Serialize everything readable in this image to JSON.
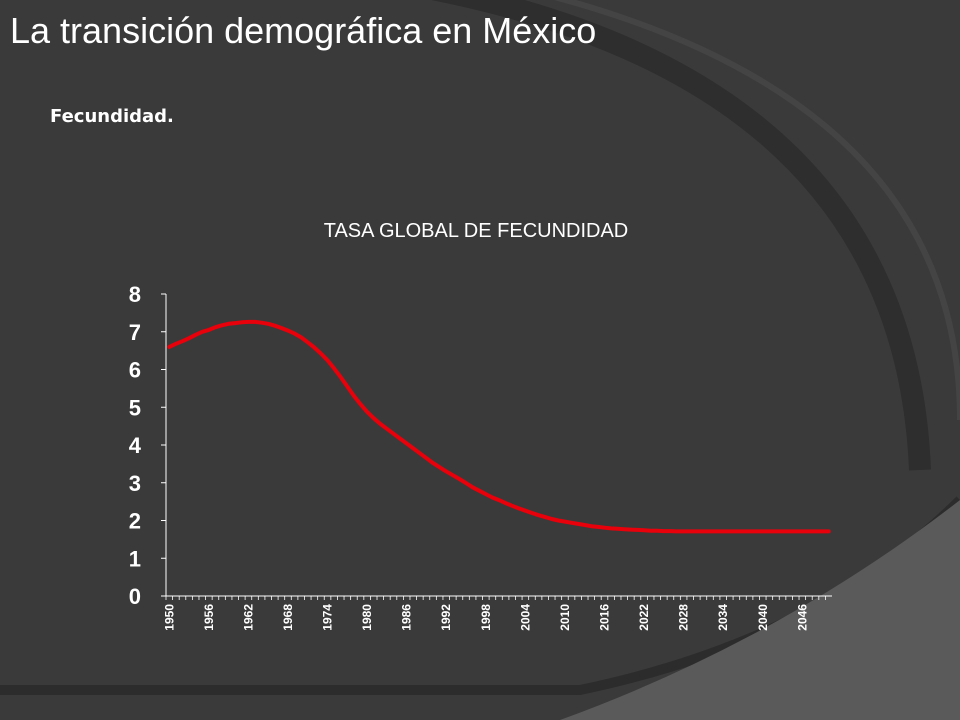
{
  "slide": {
    "title": "La transición demográfica en México",
    "subtitle": "Fecundidad."
  },
  "colors": {
    "background": "#3a3a3a",
    "text": "#ffffff",
    "line": "#e8000b",
    "axis": "#ffffff"
  },
  "chart_data": {
    "type": "line",
    "title": "TASA GLOBAL DE FECUNDIDAD",
    "xlabel": "",
    "ylabel": "",
    "ylim": [
      0,
      8
    ],
    "yticks": [
      0,
      1,
      2,
      3,
      4,
      5,
      6,
      7,
      8
    ],
    "xticks": [
      "1950",
      "1956",
      "1962",
      "1968",
      "1974",
      "1980",
      "1986",
      "1992",
      "1998",
      "2004",
      "2010",
      "2016",
      "2022",
      "2028",
      "2034",
      "2040",
      "2046"
    ],
    "grid": false,
    "legend": "none",
    "series": [
      {
        "x": [
          1950,
          1951,
          1952,
          1953,
          1954,
          1955,
          1956,
          1957,
          1958,
          1959,
          1960,
          1961,
          1962,
          1963,
          1964,
          1965,
          1966,
          1967,
          1968,
          1969,
          1970,
          1971,
          1972,
          1973,
          1974,
          1975,
          1976,
          1977,
          1978,
          1979,
          1980,
          1981,
          1982,
          1983,
          1984,
          1985,
          1986,
          1987,
          1988,
          1989,
          1990,
          1991,
          1992,
          1993,
          1994,
          1995,
          1996,
          1997,
          1998,
          1999,
          2000,
          2001,
          2002,
          2003,
          2004,
          2005,
          2006,
          2007,
          2008,
          2009,
          2010,
          2011,
          2012,
          2013,
          2014,
          2015,
          2016,
          2017,
          2018,
          2019,
          2020,
          2021,
          2022,
          2023,
          2024,
          2025,
          2026,
          2027,
          2028,
          2029,
          2030,
          2031,
          2032,
          2033,
          2034,
          2035,
          2036,
          2037,
          2038,
          2039,
          2040,
          2041,
          2042,
          2043,
          2044,
          2045,
          2046,
          2047,
          2048,
          2049,
          2050
        ],
        "values": [
          6.6,
          6.68,
          6.75,
          6.83,
          6.92,
          7.0,
          7.05,
          7.12,
          7.17,
          7.21,
          7.23,
          7.25,
          7.26,
          7.26,
          7.24,
          7.21,
          7.16,
          7.1,
          7.03,
          6.95,
          6.85,
          6.72,
          6.58,
          6.42,
          6.24,
          6.03,
          5.8,
          5.55,
          5.3,
          5.08,
          4.88,
          4.71,
          4.56,
          4.43,
          4.3,
          4.17,
          4.04,
          3.91,
          3.78,
          3.65,
          3.52,
          3.41,
          3.3,
          3.2,
          3.1,
          2.99,
          2.88,
          2.79,
          2.7,
          2.61,
          2.54,
          2.46,
          2.39,
          2.32,
          2.26,
          2.2,
          2.14,
          2.09,
          2.04,
          2.0,
          1.97,
          1.94,
          1.91,
          1.88,
          1.85,
          1.83,
          1.81,
          1.79,
          1.78,
          1.77,
          1.76,
          1.75,
          1.74,
          1.73,
          1.73,
          1.72,
          1.72,
          1.71,
          1.71,
          1.71,
          1.71,
          1.71,
          1.71,
          1.71,
          1.71,
          1.71,
          1.71,
          1.71,
          1.71,
          1.71,
          1.71,
          1.71,
          1.71,
          1.71,
          1.71,
          1.71,
          1.71,
          1.71,
          1.71,
          1.71,
          1.71
        ]
      }
    ]
  }
}
